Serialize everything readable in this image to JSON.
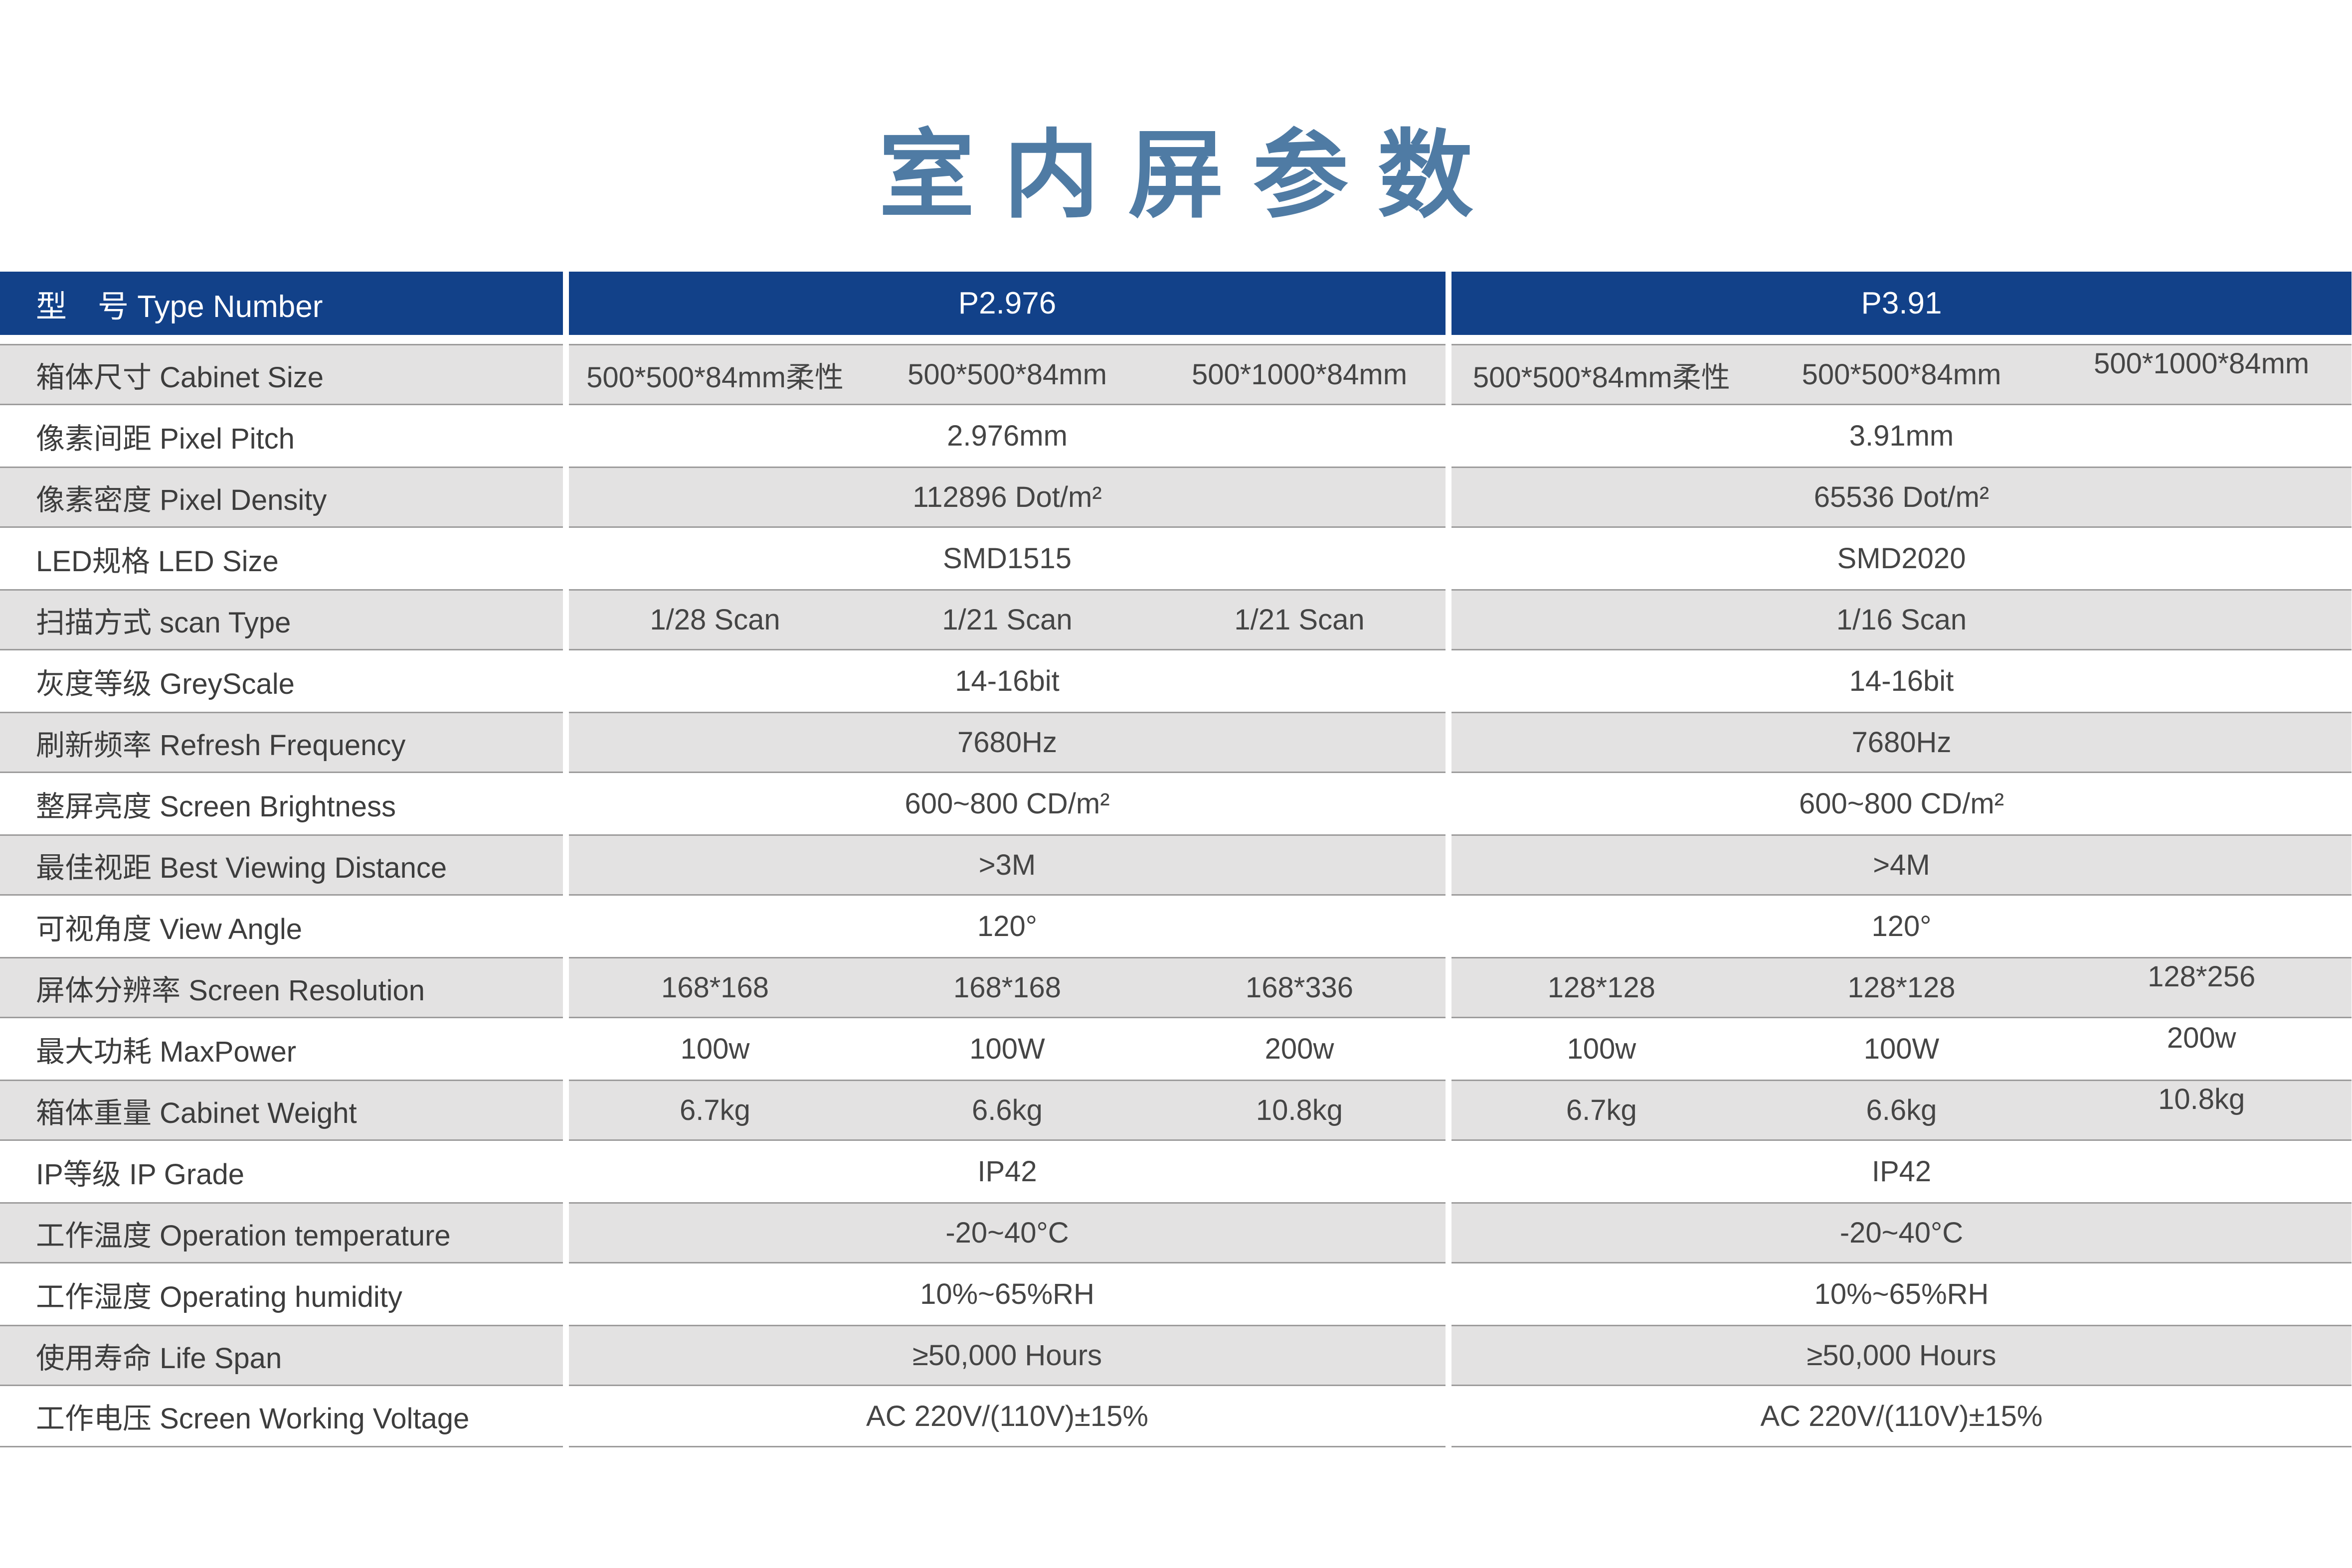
{
  "title": "室内屏参数",
  "colors": {
    "header_bg": "#124189",
    "header_text": "#ffffff",
    "title_color": "#4f7ba4",
    "row_shade": "#e3e2e2",
    "row_border": "#9d9c9c",
    "label_text": "#3d3d3d",
    "value_text": "#454545",
    "page_bg": "#ffffff"
  },
  "table": {
    "header": {
      "label": "型　号 Type Number",
      "col1": "P2.976",
      "col2": "P3.91"
    },
    "rows": [
      {
        "label": "箱体尺寸 Cabinet Size",
        "shaded": true,
        "raise3": true,
        "col1": [
          "500*500*84mm柔性",
          "500*500*84mm",
          "500*1000*84mm"
        ],
        "col2": [
          "500*500*84mm柔性",
          "500*500*84mm",
          "500*1000*84mm"
        ]
      },
      {
        "label": "像素间距 Pixel Pitch",
        "shaded": false,
        "col1": [
          "2.976mm"
        ],
        "col2": [
          "3.91mm"
        ]
      },
      {
        "label": "像素密度 Pixel Density",
        "shaded": true,
        "col1": [
          "112896 Dot/m²"
        ],
        "col2": [
          "65536 Dot/m²"
        ]
      },
      {
        "label": "LED规格 LED Size",
        "shaded": false,
        "col1": [
          "SMD1515"
        ],
        "col2": [
          "SMD2020"
        ]
      },
      {
        "label": "扫描方式 scan Type",
        "shaded": true,
        "col1": [
          "1/28 Scan",
          "1/21 Scan",
          "1/21 Scan"
        ],
        "col2": [
          "1/16 Scan"
        ]
      },
      {
        "label": "灰度等级 GreyScale",
        "shaded": false,
        "col1": [
          "14-16bit"
        ],
        "col2": [
          "14-16bit"
        ]
      },
      {
        "label": "刷新频率 Refresh Frequency",
        "shaded": true,
        "col1": [
          "7680Hz"
        ],
        "col2": [
          "7680Hz"
        ]
      },
      {
        "label": "整屏亮度 Screen Brightness",
        "shaded": false,
        "col1": [
          "600~800 CD/m²"
        ],
        "col2": [
          "600~800 CD/m²"
        ]
      },
      {
        "label": "最佳视距 Best Viewing Distance",
        "shaded": true,
        "col1": [
          ">3M"
        ],
        "col2": [
          ">4M"
        ]
      },
      {
        "label": "可视角度 View Angle",
        "shaded": false,
        "col1": [
          "120°"
        ],
        "col2": [
          "120°"
        ]
      },
      {
        "label": "屏体分辨率 Screen Resolution",
        "shaded": true,
        "raise3": true,
        "col1": [
          "168*168",
          "168*168",
          "168*336"
        ],
        "col2": [
          "128*128",
          "128*128",
          "128*256"
        ]
      },
      {
        "label": "最大功耗 MaxPower",
        "shaded": false,
        "raise3": true,
        "col1": [
          "100w",
          "100W",
          "200w"
        ],
        "col2": [
          "100w",
          "100W",
          "200w"
        ]
      },
      {
        "label": "箱体重量 Cabinet Weight",
        "shaded": true,
        "raise3": true,
        "col1": [
          "6.7kg",
          "6.6kg",
          "10.8kg"
        ],
        "col2": [
          "6.7kg",
          "6.6kg",
          "10.8kg"
        ]
      },
      {
        "label": "IP等级 IP Grade",
        "shaded": false,
        "col1": [
          "IP42"
        ],
        "col2": [
          "IP42"
        ]
      },
      {
        "label": "工作温度 Operation temperature",
        "shaded": true,
        "col1": [
          "-20~40°C"
        ],
        "col2": [
          "-20~40°C"
        ]
      },
      {
        "label": "工作湿度 Operating humidity",
        "shaded": false,
        "col1": [
          "10%~65%RH"
        ],
        "col2": [
          "10%~65%RH"
        ]
      },
      {
        "label": "使用寿命 Life Span",
        "shaded": true,
        "col1": [
          "≥50,000 Hours"
        ],
        "col2": [
          "≥50,000 Hours"
        ]
      },
      {
        "label": "工作电压 Screen Working Voltage",
        "shaded": false,
        "last": true,
        "col1": [
          "AC 220V/(110V)±15%"
        ],
        "col2": [
          "AC 220V/(110V)±15%"
        ]
      }
    ]
  }
}
